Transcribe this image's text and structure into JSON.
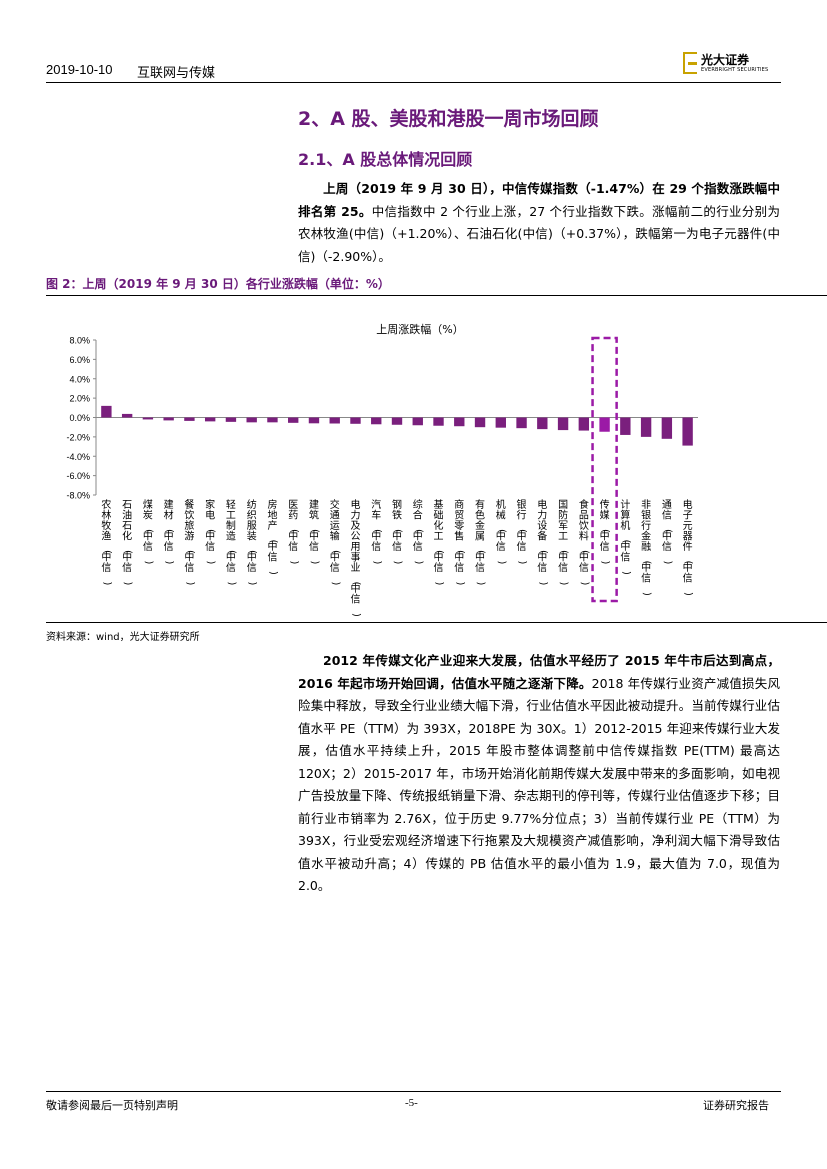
{
  "header": {
    "date": "2019-10-10",
    "sector": "互联网与传媒",
    "logo_cn": "光大证券",
    "logo_en": "EVERBRIGHT SECURITIES",
    "brand_color": "#c8a200"
  },
  "section_title": "2、A 股、美股和港股一周市场回顾",
  "subsection_title": "2.1、A 股总体情况回顾",
  "paragraph1": {
    "bold": "上周（2019 年 9 月 30 日），中信传媒指数（-1.47%）在 29 个指数涨跌幅中排名第 25。",
    "normal": "中信指数中 2 个行业上涨，27 个行业指数下跌。涨幅前二的行业分别为农林牧渔(中信)（+1.20%）、石油石化(中信)（+0.37%），跌幅第一为电子元器件(中信)（-2.90%）。"
  },
  "figure": {
    "title": "图 2：上周（2019 年 9 月 30 日）各行业涨跌幅（单位：%）",
    "source": "资料来源：wind，光大证券研究所"
  },
  "chart_data": {
    "type": "bar",
    "title": "上周涨跌幅（%）",
    "ylim": [
      -8,
      8
    ],
    "yticks": [
      "8.0%",
      "6.0%",
      "4.0%",
      "2.0%",
      "0.0%",
      "-2.0%",
      "-4.0%",
      "-6.0%",
      "-8.0%"
    ],
    "categories": [
      "农林牧渔(中信)",
      "石油石化(中信)",
      "煤炭(中信)",
      "建材(中信)",
      "餐饮旅游(中信)",
      "家电(中信)",
      "轻工制造(中信)",
      "纺织服装(中信)",
      "房地产(中信)",
      "医药(中信)",
      "建筑(中信)",
      "交通运输(中信)",
      "电力及公用事业(中信)",
      "汽车(中信)",
      "钢铁(中信)",
      "综合(中信)",
      "基础化工(中信)",
      "商贸零售(中信)",
      "有色金属(中信)",
      "机械(中信)",
      "银行(中信)",
      "电力设备(中信)",
      "国防军工(中信)",
      "食品饮料(中信)",
      "传媒(中信)",
      "计算机(中信)",
      "非银行金融(中信)",
      "通信(中信)",
      "电子元器件(中信)"
    ],
    "values": [
      1.2,
      0.37,
      -0.2,
      -0.3,
      -0.35,
      -0.4,
      -0.45,
      -0.5,
      -0.5,
      -0.55,
      -0.6,
      -0.62,
      -0.65,
      -0.7,
      -0.75,
      -0.8,
      -0.85,
      -0.9,
      -1.0,
      -1.05,
      -1.1,
      -1.2,
      -1.3,
      -1.35,
      -1.47,
      -1.8,
      -2.0,
      -2.2,
      -2.9
    ],
    "highlight_category": "传媒(中信)",
    "bar_color": "#7a1f7d",
    "highlight_color": "#9b1aa6"
  },
  "paragraph2": {
    "bold": "2012 年传媒文化产业迎来大发展，估值水平经历了 2015 年牛市后达到高点，2016 年起市场开始回调，估值水平随之逐渐下降。",
    "normal": "2018 年传媒行业资产减值损失风险集中释放，导致全行业业绩大幅下滑，行业估值水平因此被动提升。当前传媒行业估值水平 PE（TTM）为 393X，2018PE 为 30X。1）2012-2015 年迎来传媒行业大发展，估值水平持续上升，2015 年股市整体调整前中信传媒指数 PE(TTM) 最高达 120X；2）2015-2017 年，市场开始消化前期传媒大发展中带来的多面影响，如电视广告投放量下降、传统报纸销量下滑、杂志期刊的停刊等，传媒行业估值逐步下移；目前行业市销率为 2.76X，位于历史 9.77%分位点；3）当前传媒行业 PE（TTM）为 393X，行业受宏观经济增速下行拖累及大规模资产减值影响，净利润大幅下滑导致估值水平被动升高；4）传媒的 PB 估值水平的最小值为 1.9，最大值为 7.0，现值为 2.0。"
  },
  "footer": {
    "left": "敬请参阅最后一页特别声明",
    "page": "-5-",
    "right": "证券研究报告"
  }
}
